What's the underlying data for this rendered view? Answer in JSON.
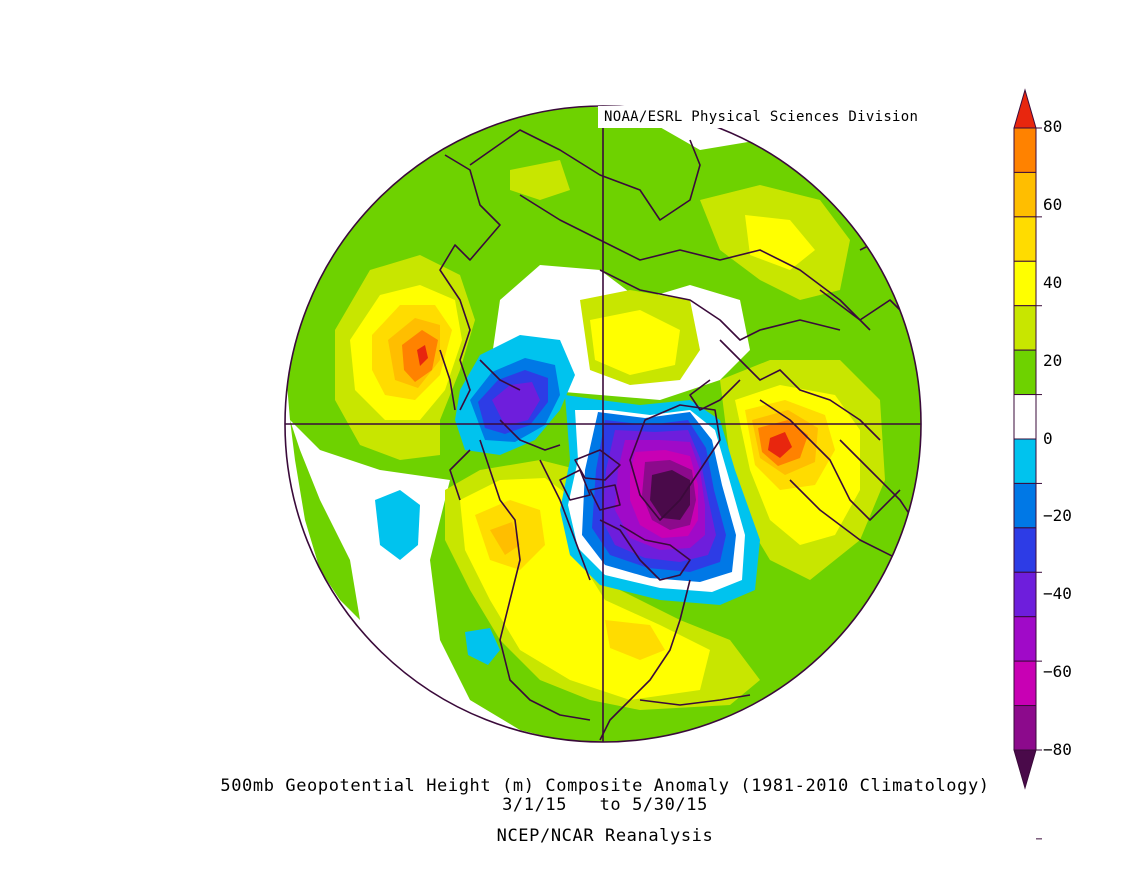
{
  "credit": "NOAA/ESRL Physical Sciences Division",
  "caption": {
    "line1": "500mb Geopotential Height (m) Composite Anomaly (1981-2010 Climatology)",
    "line2": "3/1/15   to 5/30/15",
    "line3": "NCEP/NCAR Reanalysis"
  },
  "colorbar": {
    "labels": [
      "80",
      "60",
      "40",
      "20",
      "0",
      "−20",
      "−40",
      "−60",
      "−80"
    ],
    "bins": [
      {
        "range": "70 to 80+",
        "color": "#e8260e"
      },
      {
        "range": "60 to 70",
        "color": "#ff8200"
      },
      {
        "range": "50 to 60",
        "color": "#ffbe00"
      },
      {
        "range": "40 to 50",
        "color": "#ffdc00"
      },
      {
        "range": "30 to 40",
        "color": "#ffff00"
      },
      {
        "range": "20 to 30",
        "color": "#c8e600"
      },
      {
        "range": "10 to 20",
        "color": "#6ed200"
      },
      {
        "range": "-10 to 10",
        "color": "#ffffff"
      },
      {
        "range": "-20 to -10",
        "color": "#00c3ee"
      },
      {
        "range": "-30 to -20",
        "color": "#0078e6"
      },
      {
        "range": "-40 to -30",
        "color": "#2d3ce6"
      },
      {
        "range": "-50 to -40",
        "color": "#6e1edc"
      },
      {
        "range": "-60 to -50",
        "color": "#a00ac8"
      },
      {
        "range": "-70 to -60",
        "color": "#c800b4"
      },
      {
        "range": "-80 to -70",
        "color": "#8c0a8c"
      },
      {
        "range": "below -80",
        "color": "#4a0a4a"
      }
    ]
  },
  "map": {
    "projection": "north polar stereographic",
    "variable": "500mb geopotential height anomaly",
    "units": "m",
    "features": [
      {
        "region": "eastern Canada / Hudson Bay",
        "sign": "negative",
        "peak": "below -80"
      },
      {
        "region": "northeast Siberia / East Asia",
        "sign": "negative",
        "peak": "-50"
      },
      {
        "region": "North Atlantic / Europe",
        "sign": "positive",
        "peak": "70"
      },
      {
        "region": "western North America",
        "sign": "positive",
        "peak": "60"
      },
      {
        "region": "North Pacific",
        "sign": "positive",
        "peak": "70"
      },
      {
        "region": "southern United States",
        "sign": "positive",
        "peak": "50"
      }
    ]
  }
}
